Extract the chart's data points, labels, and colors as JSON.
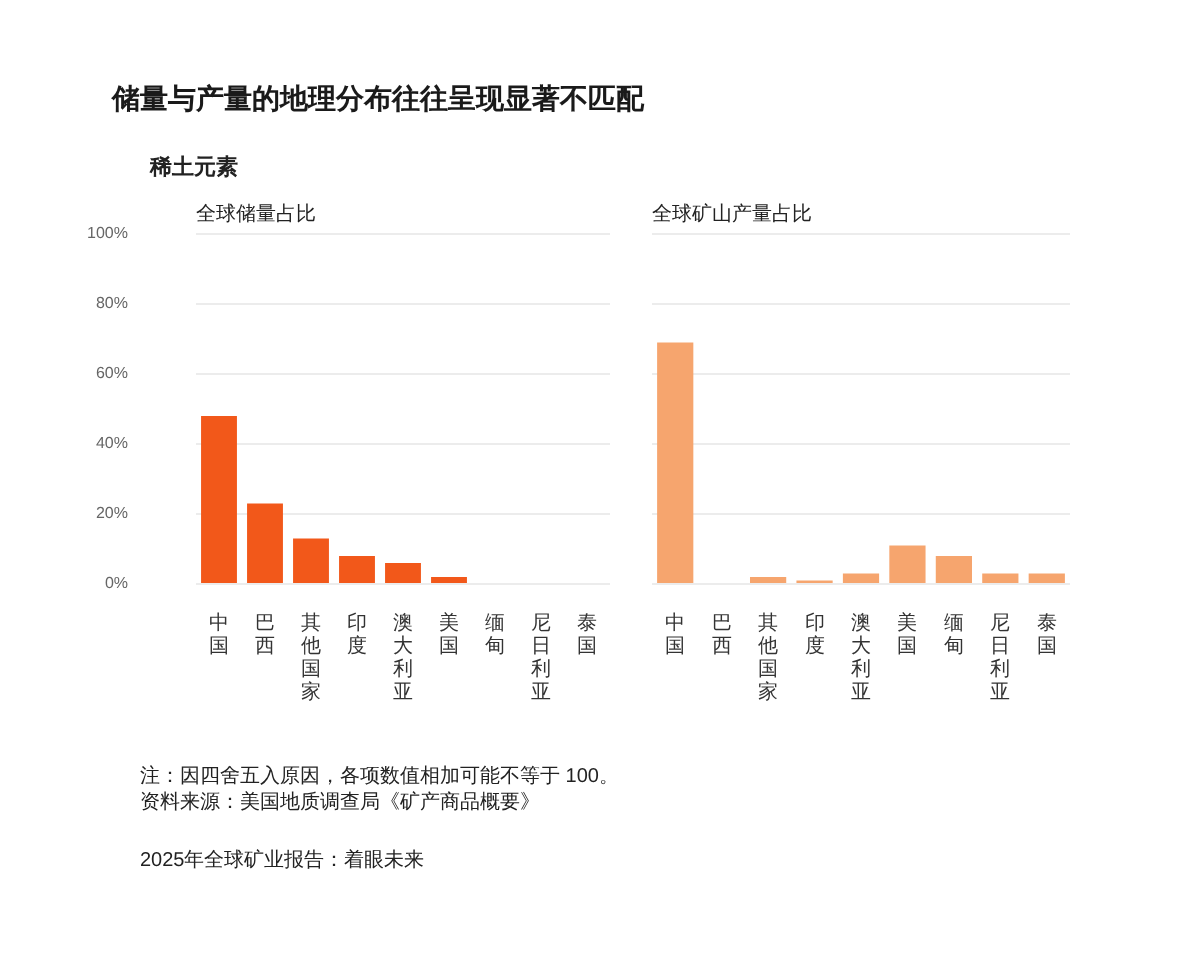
{
  "chart_data": [
    {
      "type": "other",
      "title": "储量与产量的地理分布往往呈现显著不匹配",
      "subtitle": "稀土元素"
    },
    {
      "type": "bar",
      "title": "全球储量占比",
      "categories": [
        "中国",
        "巴西",
        "其他国家",
        "印度",
        "澳大利亚",
        "美国",
        "缅甸",
        "尼日利亚",
        "泰国"
      ],
      "values": [
        48,
        23,
        13,
        8,
        6,
        2,
        null,
        null,
        null
      ],
      "color": "#f2581a",
      "ylim": [
        0,
        100
      ],
      "yticks": [
        {
          "value": 0,
          "label": "0%"
        },
        {
          "value": 20,
          "label": "20%"
        },
        {
          "value": 40,
          "label": "40%"
        },
        {
          "value": 60,
          "label": "60%"
        },
        {
          "value": 80,
          "label": "80%"
        },
        {
          "value": 100,
          "label": "100%"
        }
      ],
      "grid": "y"
    },
    {
      "type": "bar",
      "title": "全球矿山产量占比",
      "categories": [
        "中国",
        "巴西",
        "其他国家",
        "印度",
        "澳大利亚",
        "美国",
        "缅甸",
        "尼日利亚",
        "泰国"
      ],
      "values": [
        69,
        null,
        2,
        1,
        3,
        11,
        8,
        3,
        3
      ],
      "color": "#f6a56e",
      "ylim": [
        0,
        100
      ],
      "yticks": [
        0,
        20,
        40,
        60,
        80,
        100
      ],
      "grid": "y",
      "tick_labels": "x"
    },
    {
      "type": "other",
      "annotations": [
        "注：因四舍五入原因，各项数值相加可能不等于 100。",
        "资料来源：美国地质调查局《矿产商品概要》",
        "2025年全球矿业报告：着眼未来"
      ]
    }
  ]
}
